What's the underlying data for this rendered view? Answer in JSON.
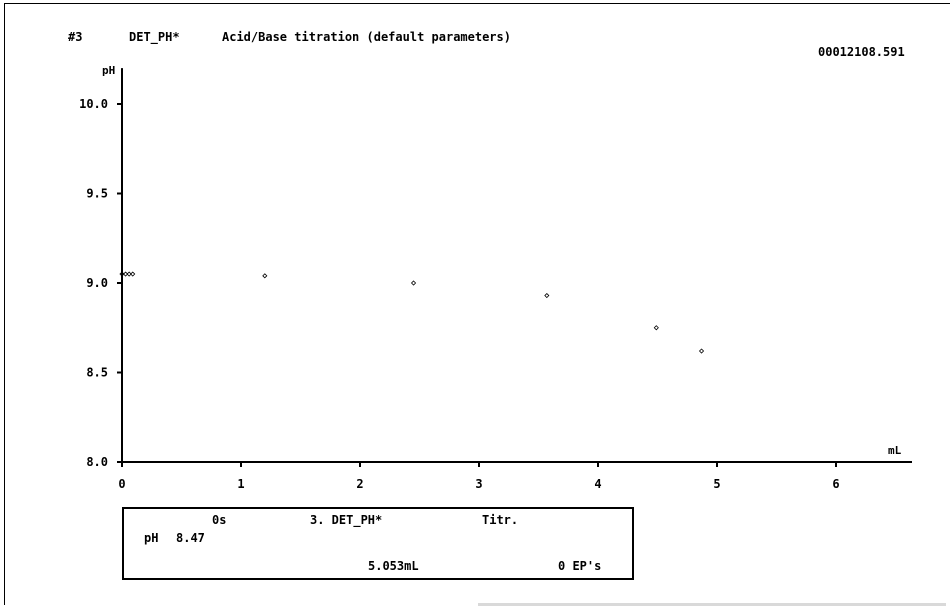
{
  "header": {
    "method_number": "#3",
    "method_name": "DET_PH*",
    "title": "Acid/Base titration (default parameters)",
    "run_id": "00012108.591"
  },
  "chart_data": {
    "type": "scatter",
    "xlabel": "mL",
    "ylabel": "pH",
    "xlim": [
      0,
      6.6
    ],
    "ylim": [
      8.0,
      10.1
    ],
    "x_ticks": [
      "0",
      "1",
      "2",
      "3",
      "4",
      "5",
      "6"
    ],
    "y_ticks": [
      "8.0",
      "8.5",
      "9.0",
      "9.5",
      "10.0"
    ],
    "grid": false,
    "series": [
      {
        "points": [
          {
            "x": 0.0,
            "y": 9.05
          },
          {
            "x": 0.03,
            "y": 9.05
          },
          {
            "x": 0.06,
            "y": 9.05
          },
          {
            "x": 0.09,
            "y": 9.05
          },
          {
            "x": 1.2,
            "y": 9.04
          },
          {
            "x": 2.45,
            "y": 9.0
          },
          {
            "x": 3.57,
            "y": 8.93
          },
          {
            "x": 4.49,
            "y": 8.75
          },
          {
            "x": 4.87,
            "y": 8.62
          }
        ]
      }
    ]
  },
  "status": {
    "time": "0s",
    "method": "3. DET_PH*",
    "mode": "Titr.",
    "ph_label": "pH",
    "ph_value": "8.47",
    "volume": "5.053mL",
    "ep_count": "0 EP's"
  }
}
